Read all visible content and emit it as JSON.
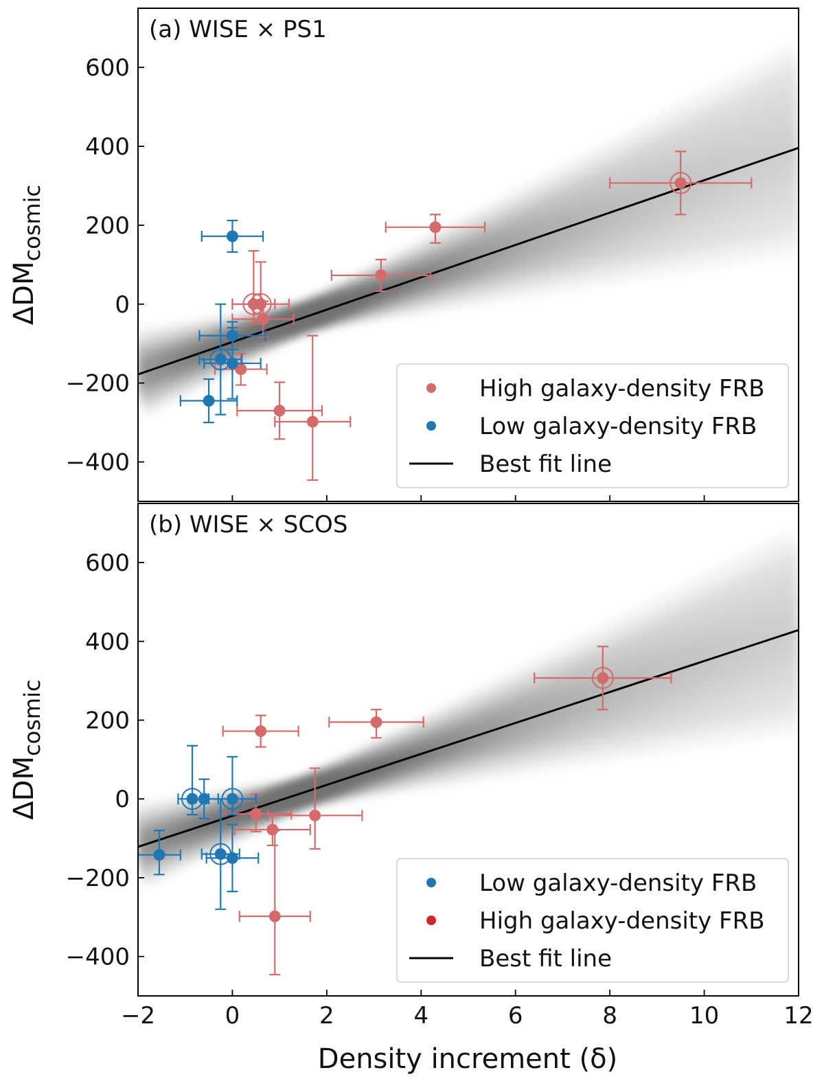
{
  "figure": {
    "xlabel": "Density increment (δ)"
  },
  "chart_data": [
    {
      "type": "scatter",
      "title": "(a) WISE × PS1",
      "ylabel": "ΔDM",
      "ylabel_sub": "cosmic",
      "xlim": [
        -2,
        12
      ],
      "ylim": [
        -500,
        750
      ],
      "xticks": [
        -2,
        0,
        2,
        4,
        6,
        8,
        10,
        12
      ],
      "xtick_labels": [],
      "yticks": [
        -400,
        -200,
        0,
        200,
        400,
        600
      ],
      "ytick_labels": [
        "−400",
        "−200",
        "0",
        "200",
        "400",
        "600"
      ],
      "fit": {
        "slope": 41,
        "intercept": -96
      },
      "legend": {
        "position": "lower-right",
        "entries": [
          {
            "label": "High galaxy-density FRB",
            "kind": "marker",
            "color": "#d46a6a"
          },
          {
            "label": "Low galaxy-density FRB",
            "kind": "marker",
            "color": "#1f77b4"
          },
          {
            "label": "Best fit line",
            "kind": "line",
            "color": "#000000"
          }
        ]
      },
      "series": [
        {
          "name": "High galaxy-density FRB",
          "color": "#d46a6a",
          "points": [
            {
              "x": 9.5,
              "y": 307,
              "xerr": [
                1.5,
                1.5
              ],
              "yerr": [
                80,
                80
              ],
              "circled": true
            },
            {
              "x": 4.3,
              "y": 195,
              "xerr": [
                1.05,
                1.05
              ],
              "yerr": [
                40,
                32
              ]
            },
            {
              "x": 3.15,
              "y": 73,
              "xerr": [
                1.05,
                1.05
              ],
              "yerr": [
                40,
                40
              ]
            },
            {
              "x": 0.45,
              "y": 0,
              "xerr": [
                0.45,
                0.45
              ],
              "yerr": [
                50,
                135
              ],
              "circled": true
            },
            {
              "x": 0.6,
              "y": 0,
              "xerr": [
                0.6,
                0.6
              ],
              "yerr": [
                40,
                107
              ],
              "circled": true
            },
            {
              "x": 0.65,
              "y": -38,
              "xerr": [
                0.65,
                0.65
              ],
              "yerr": [
                45,
                45
              ]
            },
            {
              "x": 0.18,
              "y": -165,
              "xerr": [
                0.55,
                0.55
              ],
              "yerr": [
                40,
                40
              ]
            },
            {
              "x": 1.0,
              "y": -270,
              "xerr": [
                0.9,
                0.9
              ],
              "yerr": [
                72,
                72
              ]
            },
            {
              "x": 1.7,
              "y": -298,
              "xerr": [
                0.8,
                0.8
              ],
              "yerr": [
                148,
                218
              ]
            }
          ]
        },
        {
          "name": "Low galaxy-density FRB",
          "color": "#1f77b4",
          "points": [
            {
              "x": 0.0,
              "y": 172,
              "xerr": [
                0.65,
                0.65
              ],
              "yerr": [
                40,
                40
              ]
            },
            {
              "x": 0.0,
              "y": -80,
              "xerr": [
                0.7,
                0.7
              ],
              "yerr": [
                35,
                35
              ]
            },
            {
              "x": -0.25,
              "y": -140,
              "xerr": [
                0.45,
                0.45
              ],
              "yerr": [
                140,
                140
              ],
              "circled": true
            },
            {
              "x": 0.0,
              "y": -150,
              "xerr": [
                0.6,
                0.6
              ],
              "yerr": [
                90,
                90
              ]
            },
            {
              "x": -0.5,
              "y": -245,
              "xerr": [
                0.6,
                0.6
              ],
              "yerr": [
                55,
                55
              ]
            }
          ]
        }
      ]
    },
    {
      "type": "scatter",
      "title": "(b) WISE × SCOS",
      "ylabel": "ΔDM",
      "ylabel_sub": "cosmic",
      "xlim": [
        -2,
        12
      ],
      "ylim": [
        -500,
        750
      ],
      "xticks": [
        -2,
        0,
        2,
        4,
        6,
        8,
        10,
        12
      ],
      "xtick_labels": [
        "−2",
        "0",
        "2",
        "4",
        "6",
        "8",
        "10",
        "12"
      ],
      "yticks": [
        -400,
        -200,
        0,
        200,
        400,
        600
      ],
      "ytick_labels": [
        "−400",
        "−200",
        "0",
        "200",
        "400",
        "600"
      ],
      "fit": {
        "slope": 39.3,
        "intercept": -43
      },
      "legend": {
        "position": "lower-right",
        "entries": [
          {
            "label": "Low galaxy-density FRB",
            "kind": "marker",
            "color": "#1f77b4"
          },
          {
            "label": "High galaxy-density FRB",
            "kind": "marker",
            "color": "#d62728"
          },
          {
            "label": "Best fit line",
            "kind": "line",
            "color": "#000000"
          }
        ]
      },
      "series": [
        {
          "name": "High galaxy-density FRB",
          "color": "#d46a6a",
          "points": [
            {
              "x": 7.85,
              "y": 307,
              "xerr": [
                1.45,
                1.45
              ],
              "yerr": [
                80,
                80
              ],
              "circled": true
            },
            {
              "x": 3.05,
              "y": 195,
              "xerr": [
                1.0,
                1.0
              ],
              "yerr": [
                40,
                32
              ]
            },
            {
              "x": 0.6,
              "y": 172,
              "xerr": [
                0.8,
                0.8
              ],
              "yerr": [
                40,
                40
              ]
            },
            {
              "x": 0.5,
              "y": -38,
              "xerr": [
                0.75,
                0.75
              ],
              "yerr": [
                45,
                50
              ]
            },
            {
              "x": 1.75,
              "y": -42,
              "xerr": [
                1.0,
                1.0
              ],
              "yerr": [
                85,
                120
              ]
            },
            {
              "x": 0.85,
              "y": -78,
              "xerr": [
                0.8,
                0.8
              ],
              "yerr": [
                40,
                40
              ]
            },
            {
              "x": 0.9,
              "y": -298,
              "xerr": [
                0.75,
                0.75
              ],
              "yerr": [
                148,
                218
              ]
            }
          ]
        },
        {
          "name": "Low galaxy-density FRB",
          "color": "#1f77b4",
          "points": [
            {
              "x": -0.85,
              "y": 0,
              "xerr": [
                0.3,
                0.3
              ],
              "yerr": [
                40,
                135
              ],
              "circled": true
            },
            {
              "x": -0.6,
              "y": 0,
              "xerr": [
                0.3,
                0.3
              ],
              "yerr": [
                50,
                50
              ]
            },
            {
              "x": 0.0,
              "y": 0,
              "xerr": [
                0.5,
                0.5
              ],
              "yerr": [
                40,
                107
              ],
              "circled": true
            },
            {
              "x": -1.55,
              "y": -142,
              "xerr": [
                0.45,
                0.45
              ],
              "yerr": [
                50,
                62
              ]
            },
            {
              "x": -0.25,
              "y": -140,
              "xerr": [
                0.4,
                0.4
              ],
              "yerr": [
                140,
                140
              ],
              "circled": true
            },
            {
              "x": 0.0,
              "y": -150,
              "xerr": [
                0.55,
                0.55
              ],
              "yerr": [
                85,
                85
              ]
            }
          ]
        }
      ]
    }
  ]
}
